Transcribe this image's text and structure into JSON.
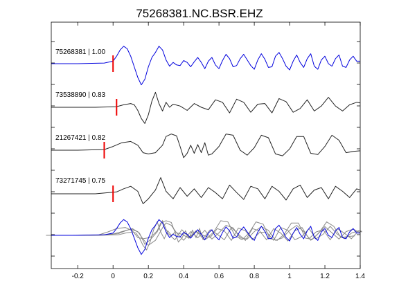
{
  "chart_data": {
    "type": "line",
    "title": "75268381.NC.BSR.EHZ",
    "xlabel": "",
    "ylabel": "",
    "xlim": [
      -0.35,
      1.4
    ],
    "xticks": [
      -0.2,
      0,
      0.2,
      0.4,
      0.6,
      0.8,
      1,
      1.2,
      1.4
    ],
    "xtick_labels": [
      "-0.2",
      "0",
      "0.2",
      "0.4",
      "0.6",
      "0.8",
      "1",
      "1.2",
      "1.4"
    ],
    "grid": false,
    "colors": {
      "reference": "#0000dd",
      "match": "#222222",
      "overlay": "#888888",
      "pick": "#ee0000"
    },
    "traces": [
      {
        "label": "75268381 | 1.00",
        "pick_time": 0.0,
        "color": "reference",
        "x": [
          -0.35,
          -0.2,
          -0.05,
          0.0,
          0.02,
          0.04,
          0.06,
          0.08,
          0.1,
          0.12,
          0.14,
          0.16,
          0.18,
          0.2,
          0.22,
          0.24,
          0.26,
          0.28,
          0.3,
          0.32,
          0.34,
          0.36,
          0.38,
          0.4,
          0.42,
          0.44,
          0.46,
          0.48,
          0.5,
          0.52,
          0.54,
          0.56,
          0.58,
          0.6,
          0.62,
          0.64,
          0.66,
          0.68,
          0.7,
          0.72,
          0.74,
          0.76,
          0.78,
          0.8,
          0.82,
          0.84,
          0.86,
          0.88,
          0.9,
          0.92,
          0.94,
          0.96,
          0.98,
          1.0,
          1.02,
          1.04,
          1.06,
          1.08,
          1.1,
          1.12,
          1.14,
          1.16,
          1.18,
          1.2,
          1.22,
          1.24,
          1.26,
          1.28,
          1.3,
          1.32,
          1.34,
          1.36,
          1.38,
          1.4
        ],
        "y": [
          0,
          0,
          0.1,
          0.4,
          1.2,
          2.2,
          2.8,
          2.4,
          1.2,
          -0.5,
          -2.2,
          -3.4,
          -2.5,
          -0.5,
          1.0,
          1.8,
          2.8,
          2.2,
          0.6,
          -0.4,
          0.2,
          -0.2,
          -0.3,
          0.5,
          0.2,
          -0.5,
          0.3,
          1.0,
          0.2,
          -0.8,
          0.4,
          1.0,
          -0.2,
          -0.8,
          0.5,
          1.5,
          0.8,
          -0.5,
          -0.3,
          0.8,
          1.5,
          0.6,
          -0.3,
          -0.9,
          0.6,
          1.6,
          0.7,
          -0.6,
          -0.5,
          1.2,
          1.8,
          0.8,
          -0.4,
          -1.0,
          0.4,
          1.4,
          0.2,
          -0.6,
          0.8,
          1.6,
          -0.4,
          -0.9,
          0.6,
          1.2,
          0.0,
          -0.4,
          0.8,
          1.4,
          -0.4,
          -0.6,
          0.6,
          1.2,
          0.4,
          0.4
        ]
      },
      {
        "label": "73538890 | 0.83",
        "pick_time": 0.02,
        "color": "match",
        "x": [
          -0.35,
          -0.1,
          0.02,
          0.06,
          0.1,
          0.12,
          0.14,
          0.16,
          0.18,
          0.2,
          0.22,
          0.24,
          0.26,
          0.28,
          0.3,
          0.32,
          0.34,
          0.38,
          0.42,
          0.46,
          0.5,
          0.54,
          0.58,
          0.62,
          0.66,
          0.7,
          0.74,
          0.78,
          0.82,
          0.86,
          0.9,
          0.94,
          0.98,
          1.02,
          1.06,
          1.1,
          1.14,
          1.18,
          1.22,
          1.26,
          1.3,
          1.34,
          1.38,
          1.4
        ],
        "y": [
          0,
          0,
          0.1,
          0.4,
          0.6,
          0.4,
          -0.5,
          -1.8,
          -2.6,
          -1.2,
          1.0,
          2.4,
          0.6,
          -0.6,
          0.8,
          0.0,
          0.5,
          0.2,
          -0.5,
          0.6,
          0.0,
          -0.4,
          1.2,
          0.8,
          -0.9,
          1.3,
          0.8,
          -0.8,
          0.5,
          0.6,
          -0.9,
          1.4,
          0.9,
          -0.8,
          -0.2,
          1.2,
          -0.6,
          0.2,
          1.6,
          0.2,
          -0.6,
          0.4,
          0.8,
          0.7
        ]
      },
      {
        "label": "21267421 | 0.82",
        "pick_time": -0.05,
        "color": "match",
        "x": [
          -0.35,
          -0.2,
          -0.05,
          0.0,
          0.05,
          0.1,
          0.14,
          0.17,
          0.2,
          0.24,
          0.28,
          0.3,
          0.33,
          0.36,
          0.38,
          0.4,
          0.42,
          0.44,
          0.46,
          0.48,
          0.5,
          0.52,
          0.54,
          0.56,
          0.6,
          0.64,
          0.68,
          0.72,
          0.76,
          0.8,
          0.84,
          0.88,
          0.92,
          0.96,
          1.0,
          1.04,
          1.08,
          1.12,
          1.16,
          1.2,
          1.24,
          1.28,
          1.32,
          1.36,
          1.4
        ],
        "y": [
          0,
          0,
          0.1,
          0.6,
          1.2,
          1.4,
          0.8,
          -0.4,
          -0.6,
          -0.4,
          0.8,
          2.2,
          2.6,
          2.3,
          0.6,
          -1.2,
          -0.5,
          0.8,
          -0.5,
          0.9,
          -0.4,
          1.2,
          -0.8,
          -0.6,
          0.6,
          2.6,
          2.4,
          0.0,
          -0.8,
          0.4,
          2.4,
          2.0,
          -0.6,
          -0.9,
          0.2,
          2.2,
          2.2,
          -0.5,
          -0.7,
          0.6,
          2.4,
          1.6,
          -0.4,
          -0.2,
          -0.1
        ]
      },
      {
        "label": "73271745 | 0.75",
        "pick_time": 0.0,
        "color": "match",
        "x": [
          -0.35,
          -0.1,
          0.02,
          0.06,
          0.1,
          0.14,
          0.17,
          0.2,
          0.24,
          0.27,
          0.3,
          0.34,
          0.38,
          0.42,
          0.46,
          0.5,
          0.54,
          0.58,
          0.62,
          0.66,
          0.7,
          0.74,
          0.78,
          0.82,
          0.86,
          0.9,
          0.94,
          0.98,
          1.02,
          1.06,
          1.1,
          1.14,
          1.18,
          1.22,
          1.26,
          1.3,
          1.34,
          1.38,
          1.4
        ],
        "y": [
          0,
          0,
          0.3,
          0.8,
          1.2,
          0.4,
          -1.6,
          -0.8,
          0.6,
          2.6,
          0.4,
          -0.8,
          1.0,
          -0.4,
          0.8,
          -0.6,
          1.0,
          0.2,
          -0.8,
          1.4,
          0.2,
          -0.9,
          1.2,
          0.8,
          -0.8,
          1.2,
          0.4,
          -1.0,
          0.8,
          1.4,
          -0.6,
          0.6,
          1.0,
          -0.8,
          1.2,
          0.4,
          -0.6,
          0.8,
          0.6
        ]
      },
      {
        "label": "",
        "pick_time": null,
        "color": "overlay",
        "x": [
          -0.35,
          -0.1,
          0.0,
          0.05,
          0.1,
          0.14,
          0.17,
          0.2,
          0.24,
          0.28,
          0.3,
          0.33,
          0.36,
          0.4,
          0.44,
          0.48,
          0.52,
          0.56,
          0.6,
          0.64,
          0.68,
          0.72,
          0.76,
          0.8,
          0.84,
          0.88,
          0.92,
          0.96,
          1.0,
          1.04,
          1.08,
          1.12,
          1.16,
          1.2,
          1.24,
          1.28,
          1.32,
          1.36,
          1.4
        ],
        "y": [
          0,
          0,
          0.2,
          0.6,
          1.0,
          0.6,
          -0.6,
          -1.6,
          -0.8,
          1.2,
          2.0,
          1.6,
          0.4,
          -0.8,
          0.6,
          -0.4,
          0.8,
          -0.6,
          0.4,
          1.6,
          1.2,
          -0.4,
          -0.6,
          0.6,
          1.4,
          0.8,
          -0.8,
          -0.4,
          0.8,
          1.6,
          0.6,
          -0.8,
          0.2,
          1.4,
          0.4,
          -0.6,
          0.6,
          1.0,
          0.4
        ]
      }
    ]
  }
}
